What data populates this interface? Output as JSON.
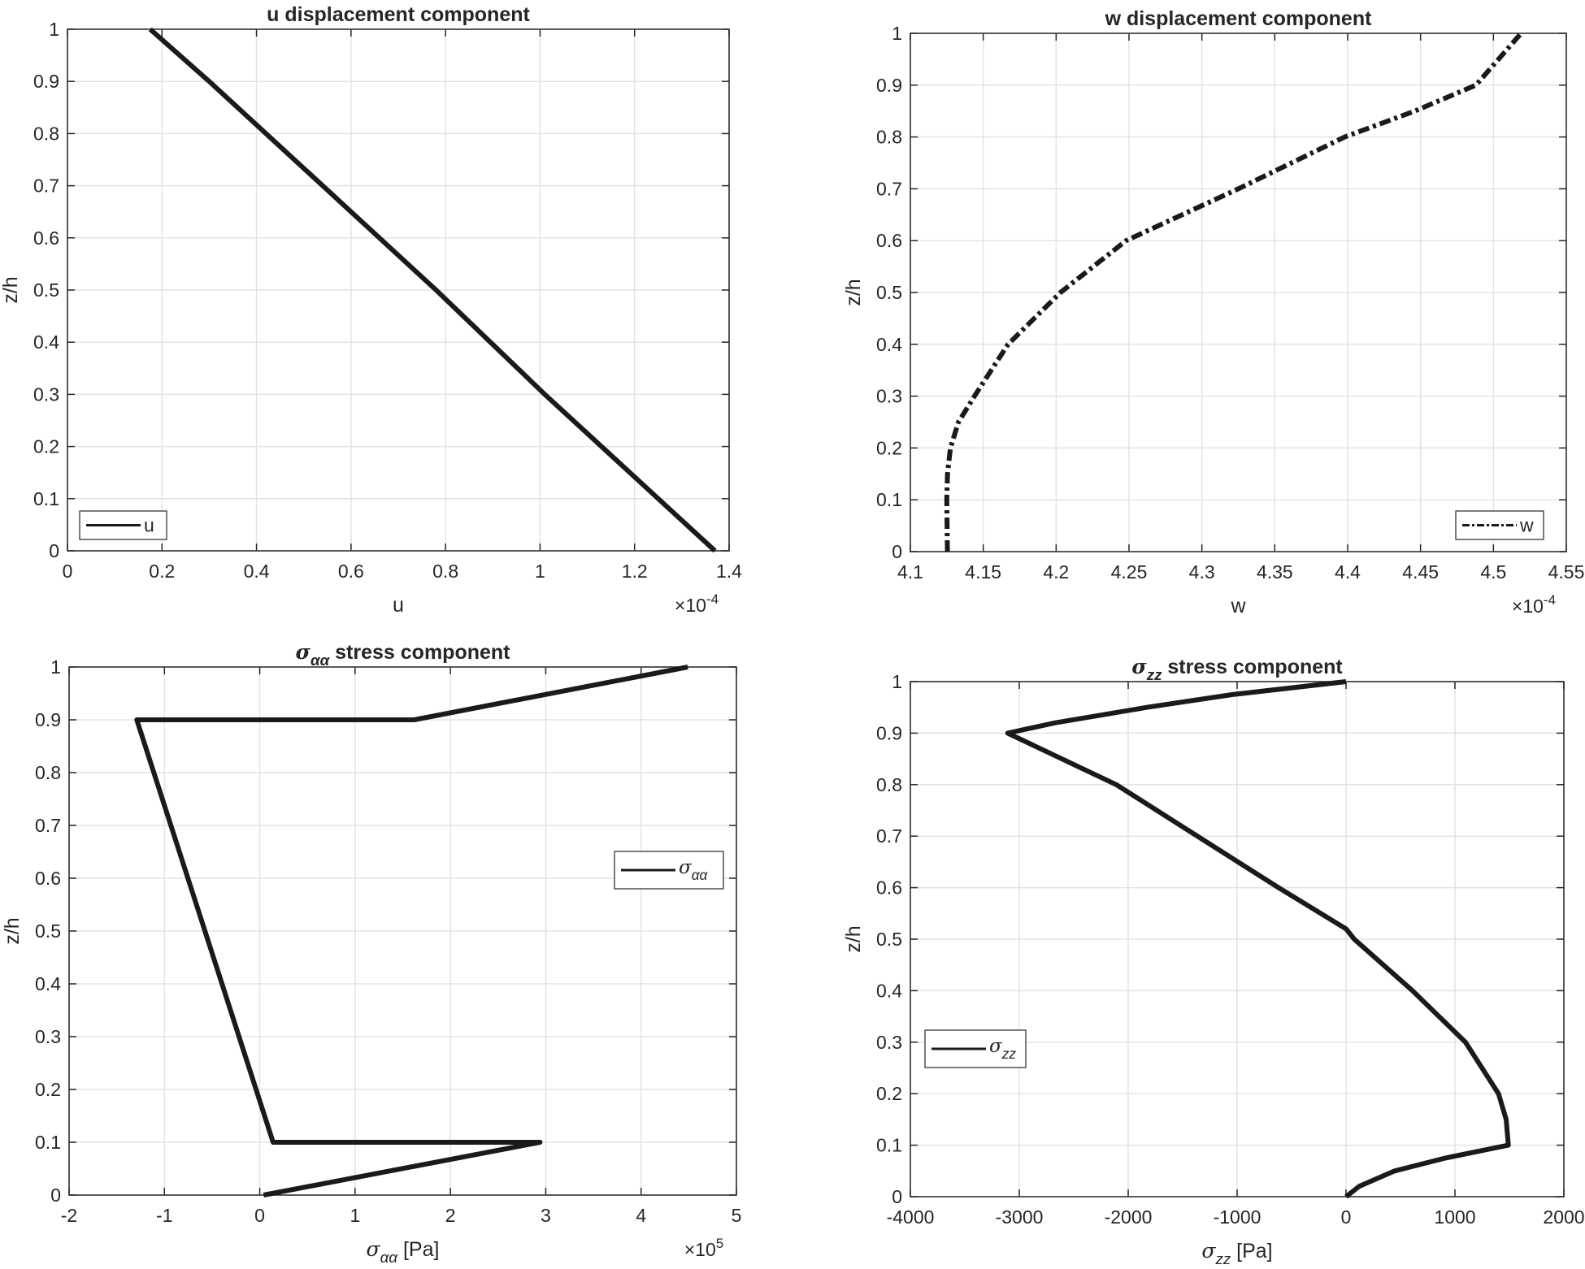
{
  "chart_data": [
    {
      "type": "line",
      "title": {
        "symbol": "",
        "sub": "",
        "text": "u displacement component"
      },
      "xlabel": {
        "symbol": "",
        "sub": "",
        "text": "u"
      },
      "ylabel": "z/h",
      "x_exponent": {
        "base": "×10",
        "power": "-4"
      },
      "xlim": [
        0,
        1.4
      ],
      "ylim": [
        0,
        1
      ],
      "xticks": [
        "0",
        "0.2",
        "0.4",
        "0.6",
        "0.8",
        "1",
        "1.2",
        "1.4"
      ],
      "xtick_values": [
        0,
        0.2,
        0.4,
        0.6,
        0.8,
        1.0,
        1.2,
        1.4
      ],
      "yticks": [
        "0",
        "0.1",
        "0.2",
        "0.3",
        "0.4",
        "0.5",
        "0.6",
        "0.7",
        "0.8",
        "0.9",
        "1"
      ],
      "grid": true,
      "legend": {
        "placement": "bottom-left",
        "symbol": "",
        "sub": "",
        "text": "u"
      },
      "series": [
        {
          "name": "u",
          "style": "solid",
          "color": "#1a1a1a",
          "x": [
            1.37,
            1.25,
            1.01,
            0.78,
            0.54,
            0.3,
            0.175
          ],
          "y": [
            0,
            0.1,
            0.3,
            0.5,
            0.7,
            0.9,
            1.0
          ]
        }
      ]
    },
    {
      "type": "line",
      "title": {
        "symbol": "",
        "sub": "",
        "text": "w displacement component"
      },
      "xlabel": {
        "symbol": "",
        "sub": "",
        "text": "w"
      },
      "ylabel": "z/h",
      "x_exponent": {
        "base": "×10",
        "power": "-4"
      },
      "xlim": [
        4.1,
        4.55
      ],
      "ylim": [
        0,
        1
      ],
      "xticks": [
        "4.1",
        "4.15",
        "4.2",
        "4.25",
        "4.3",
        "4.35",
        "4.4",
        "4.45",
        "4.5",
        "4.55"
      ],
      "xtick_values": [
        4.1,
        4.15,
        4.2,
        4.25,
        4.3,
        4.35,
        4.4,
        4.45,
        4.5,
        4.55
      ],
      "yticks": [
        "0",
        "0.1",
        "0.2",
        "0.3",
        "0.4",
        "0.5",
        "0.6",
        "0.7",
        "0.8",
        "0.9",
        "1"
      ],
      "grid": true,
      "legend": {
        "placement": "bottom-right",
        "symbol": "",
        "sub": "",
        "text": "w"
      },
      "series": [
        {
          "name": "w",
          "style": "dashdot",
          "color": "#1a1a1a",
          "x": [
            4.1254,
            4.125,
            4.1255,
            4.1275,
            4.133,
            4.144,
            4.167,
            4.203,
            4.248,
            4.325,
            4.398,
            4.446,
            4.488,
            4.519
          ],
          "y": [
            0,
            0.1,
            0.15,
            0.2,
            0.25,
            0.3,
            0.4,
            0.5,
            0.6,
            0.7,
            0.8,
            0.85,
            0.9,
            1.0
          ]
        }
      ]
    },
    {
      "type": "line",
      "title": {
        "symbol": "σ",
        "sub": "αα",
        "text": " stress component"
      },
      "xlabel": {
        "symbol": "σ",
        "sub": "αα",
        "text": " [Pa]"
      },
      "ylabel": "z/h",
      "x_exponent": {
        "base": "×10",
        "power": "5"
      },
      "xlim": [
        -2,
        5
      ],
      "ylim": [
        0,
        1
      ],
      "xticks": [
        "-2",
        "-1",
        "0",
        "1",
        "2",
        "3",
        "4",
        "5"
      ],
      "xtick_values": [
        -2,
        -1,
        0,
        1,
        2,
        3,
        4,
        5
      ],
      "yticks": [
        "0",
        "0.1",
        "0.2",
        "0.3",
        "0.4",
        "0.5",
        "0.6",
        "0.7",
        "0.8",
        "0.9",
        "1"
      ],
      "grid": true,
      "legend": {
        "placement": "right",
        "symbol": "σ",
        "sub": "αα",
        "text": ""
      },
      "series": [
        {
          "name": "σαα",
          "style": "solid",
          "color": "#1a1a1a",
          "x": [
            0.04,
            2.94,
            0.14,
            -1.29,
            1.62,
            4.49
          ],
          "y": [
            0,
            0.1,
            0.1,
            0.9,
            0.9,
            1.0
          ]
        }
      ]
    },
    {
      "type": "line",
      "title": {
        "symbol": "σ",
        "sub": "zz",
        "text": " stress component"
      },
      "xlabel": {
        "symbol": "σ",
        "sub": "zz",
        "text": " [Pa]"
      },
      "ylabel": "z/h",
      "x_exponent": null,
      "xlim": [
        -4000,
        2000
      ],
      "ylim": [
        0,
        1
      ],
      "xticks": [
        "-4000",
        "-3000",
        "-2000",
        "-1000",
        "0",
        "1000",
        "2000"
      ],
      "xtick_values": [
        -4000,
        -3000,
        -2000,
        -1000,
        0,
        1000,
        2000
      ],
      "yticks": [
        "0",
        "0.1",
        "0.2",
        "0.3",
        "0.4",
        "0.5",
        "0.6",
        "0.7",
        "0.8",
        "0.9",
        "1"
      ],
      "grid": true,
      "legend": {
        "placement": "left",
        "symbol": "σ",
        "sub": "zz",
        "text": ""
      },
      "series": [
        {
          "name": "σzz",
          "style": "solid",
          "color": "#1a1a1a",
          "x": [
            0,
            120,
            446,
            910,
            1490,
            1470,
            1400,
            1096,
            610,
            75,
            0,
            -620,
            -1365,
            -2110,
            -3107,
            -2670,
            -1830,
            -1040,
            0
          ],
          "y": [
            0,
            0.02,
            0.05,
            0.075,
            0.1,
            0.15,
            0.2,
            0.3,
            0.4,
            0.5,
            0.52,
            0.6,
            0.7,
            0.8,
            0.9,
            0.92,
            0.95,
            0.975,
            1.0
          ]
        }
      ]
    }
  ]
}
